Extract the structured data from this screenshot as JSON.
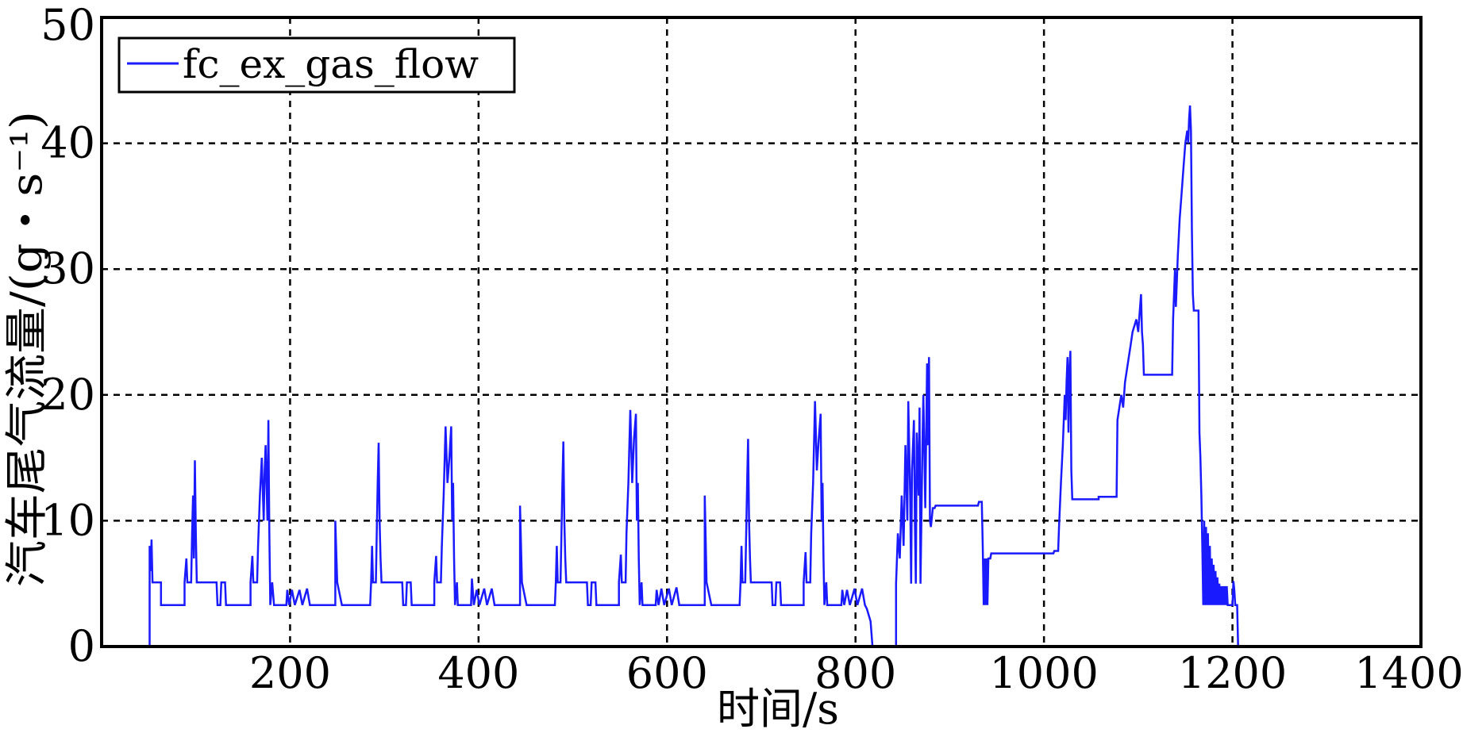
{
  "chart_data": {
    "type": "line",
    "xlabel": "时间/s",
    "ylabel": "汽车尾气流量/(g・s⁻¹)",
    "xlim": [
      0,
      1400
    ],
    "ylim": [
      0,
      50
    ],
    "xticks": [
      200,
      400,
      600,
      800,
      1000,
      1200,
      1400
    ],
    "yticks": [
      0,
      10,
      20,
      30,
      40,
      50
    ],
    "grid": true,
    "legend_position": "top-left",
    "series_color": "#1a1aff",
    "series": [
      {
        "name": "fc_ex_gas_flow",
        "points": [
          [
            51,
            0
          ],
          [
            51,
            8
          ],
          [
            52,
            6
          ],
          [
            53,
            8.5
          ],
          [
            54,
            5.1
          ],
          [
            63,
            5.1
          ],
          [
            63,
            3.3
          ],
          [
            88,
            3.3
          ],
          [
            88,
            5.1
          ],
          [
            90,
            7
          ],
          [
            91,
            5.1
          ],
          [
            95,
            5.1
          ],
          [
            96,
            9
          ],
          [
            97,
            12
          ],
          [
            98,
            7
          ],
          [
            99,
            14.8
          ],
          [
            100,
            9
          ],
          [
            101,
            5.1
          ],
          [
            122,
            5.1
          ],
          [
            123,
            3.3
          ],
          [
            126,
            3.3
          ],
          [
            127,
            5.1
          ],
          [
            131,
            5.1
          ],
          [
            132,
            3.3
          ],
          [
            158,
            3.3
          ],
          [
            158,
            5.1
          ],
          [
            160,
            7.2
          ],
          [
            161,
            5.1
          ],
          [
            165,
            5.1
          ],
          [
            166,
            8
          ],
          [
            168,
            12
          ],
          [
            170,
            15
          ],
          [
            172,
            10
          ],
          [
            173,
            14
          ],
          [
            174,
            16
          ],
          [
            176,
            10
          ],
          [
            177,
            18
          ],
          [
            178,
            9
          ],
          [
            179,
            3.3
          ],
          [
            181,
            5.1
          ],
          [
            183,
            3.3
          ],
          [
            196,
            3.3
          ],
          [
            197,
            4.5
          ],
          [
            199,
            3.3
          ],
          [
            202,
            4.5
          ],
          [
            205,
            3.3
          ],
          [
            210,
            4.5
          ],
          [
            213,
            3.3
          ],
          [
            218,
            4.6
          ],
          [
            221,
            3.3
          ],
          [
            226,
            3.3
          ],
          [
            248,
            3.3
          ],
          [
            248,
            10
          ],
          [
            250,
            5.1
          ],
          [
            255,
            3.3
          ],
          [
            285,
            3.3
          ],
          [
            286,
            5.1
          ],
          [
            287,
            8
          ],
          [
            288,
            5.1
          ],
          [
            291,
            5.1
          ],
          [
            292,
            9
          ],
          [
            293,
            13
          ],
          [
            294,
            16.2
          ],
          [
            295,
            10
          ],
          [
            296,
            7
          ],
          [
            297,
            5.1
          ],
          [
            319,
            5.1
          ],
          [
            320,
            3.3
          ],
          [
            323,
            3.3
          ],
          [
            324,
            5.1
          ],
          [
            328,
            5.1
          ],
          [
            329,
            3.3
          ],
          [
            353,
            3.3
          ],
          [
            353,
            5.1
          ],
          [
            355,
            7.2
          ],
          [
            356,
            5.1
          ],
          [
            360,
            5.1
          ],
          [
            361,
            8
          ],
          [
            363,
            12
          ],
          [
            365,
            17.5
          ],
          [
            367,
            13
          ],
          [
            369,
            15
          ],
          [
            371,
            17.5
          ],
          [
            372,
            10
          ],
          [
            373,
            13
          ],
          [
            374,
            7
          ],
          [
            375,
            3.3
          ],
          [
            377,
            5.1
          ],
          [
            378,
            3.3
          ],
          [
            392,
            3.3
          ],
          [
            393,
            5.4
          ],
          [
            395,
            3.3
          ],
          [
            398,
            4.5
          ],
          [
            401,
            3.3
          ],
          [
            406,
            4.6
          ],
          [
            409,
            3.3
          ],
          [
            414,
            4.6
          ],
          [
            417,
            3.3
          ],
          [
            423,
            3.3
          ],
          [
            444,
            3.3
          ],
          [
            444,
            11.2
          ],
          [
            446,
            5.1
          ],
          [
            451,
            3.3
          ],
          [
            481,
            3.3
          ],
          [
            482,
            5.1
          ],
          [
            483,
            8
          ],
          [
            484,
            5.1
          ],
          [
            487,
            5.1
          ],
          [
            488,
            9
          ],
          [
            489,
            13
          ],
          [
            490,
            16.3
          ],
          [
            491,
            10
          ],
          [
            492,
            7
          ],
          [
            493,
            5.1
          ],
          [
            515,
            5.1
          ],
          [
            516,
            3.3
          ],
          [
            519,
            3.3
          ],
          [
            520,
            5.1
          ],
          [
            524,
            5.1
          ],
          [
            525,
            3.3
          ],
          [
            549,
            3.3
          ],
          [
            549,
            5.1
          ],
          [
            551,
            7.3
          ],
          [
            552,
            5.1
          ],
          [
            556,
            5.1
          ],
          [
            557,
            9
          ],
          [
            559,
            13
          ],
          [
            561,
            18.8
          ],
          [
            563,
            13
          ],
          [
            565,
            16.5
          ],
          [
            567,
            18.5
          ],
          [
            568,
            10
          ],
          [
            569,
            13
          ],
          [
            570,
            7
          ],
          [
            571,
            3.3
          ],
          [
            573,
            5.1
          ],
          [
            574,
            3.3
          ],
          [
            588,
            3.3
          ],
          [
            589,
            4.5
          ],
          [
            591,
            3.3
          ],
          [
            594,
            4.6
          ],
          [
            597,
            3.3
          ],
          [
            602,
            4.6
          ],
          [
            605,
            3.3
          ],
          [
            610,
            4.7
          ],
          [
            613,
            3.3
          ],
          [
            618,
            3.3
          ],
          [
            640,
            3.3
          ],
          [
            640,
            12
          ],
          [
            642,
            5.1
          ],
          [
            647,
            3.3
          ],
          [
            677,
            3.3
          ],
          [
            678,
            5.1
          ],
          [
            679,
            8
          ],
          [
            680,
            5.1
          ],
          [
            683,
            5.1
          ],
          [
            684,
            9
          ],
          [
            685,
            13
          ],
          [
            686,
            16.5
          ],
          [
            687,
            10
          ],
          [
            688,
            7
          ],
          [
            689,
            5.1
          ],
          [
            711,
            5.1
          ],
          [
            712,
            3.3
          ],
          [
            715,
            3.3
          ],
          [
            716,
            5.1
          ],
          [
            720,
            5.1
          ],
          [
            721,
            3.3
          ],
          [
            745,
            3.3
          ],
          [
            745,
            5.1
          ],
          [
            747,
            7.5
          ],
          [
            748,
            5.1
          ],
          [
            752,
            5.1
          ],
          [
            753,
            9
          ],
          [
            755,
            13
          ],
          [
            757,
            19.5
          ],
          [
            759,
            14
          ],
          [
            761,
            16.5
          ],
          [
            763,
            18.5
          ],
          [
            764,
            10
          ],
          [
            765,
            13
          ],
          [
            766,
            7
          ],
          [
            767,
            3.3
          ],
          [
            769,
            5.1
          ],
          [
            770,
            3.3
          ],
          [
            785,
            3.3
          ],
          [
            786,
            4.5
          ],
          [
            788,
            3.3
          ],
          [
            791,
            4.5
          ],
          [
            794,
            3.3
          ],
          [
            799,
            4.6
          ],
          [
            802,
            3.3
          ],
          [
            807,
            4.6
          ],
          [
            810,
            3.3
          ],
          [
            812,
            3
          ],
          [
            816,
            2
          ],
          [
            818,
            0
          ],
          [
            843,
            0
          ],
          [
            843,
            5
          ],
          [
            845,
            9
          ],
          [
            847,
            7
          ],
          [
            849,
            12
          ],
          [
            851,
            8
          ],
          [
            853,
            16
          ],
          [
            855,
            10
          ],
          [
            856,
            19.5
          ],
          [
            858,
            12
          ],
          [
            859,
            5
          ],
          [
            860,
            14
          ],
          [
            862,
            18
          ],
          [
            863,
            10
          ],
          [
            864,
            5
          ],
          [
            865,
            17
          ],
          [
            867,
            12
          ],
          [
            868,
            19
          ],
          [
            869,
            5
          ],
          [
            871,
            16
          ],
          [
            872,
            20
          ],
          [
            874,
            11
          ],
          [
            876,
            22.5
          ],
          [
            877,
            16
          ],
          [
            878,
            23
          ],
          [
            879,
            10
          ],
          [
            880,
            9.5
          ],
          [
            882,
            11
          ],
          [
            884,
            11
          ],
          [
            885,
            11.2
          ],
          [
            930,
            11.2
          ],
          [
            931,
            11.5
          ],
          [
            934,
            11.5
          ],
          [
            935,
            8
          ],
          [
            936,
            3.3
          ],
          [
            937,
            7
          ],
          [
            938,
            3.3
          ],
          [
            939,
            7
          ],
          [
            940,
            3.3
          ],
          [
            941,
            7
          ],
          [
            943,
            7
          ],
          [
            944,
            7.4
          ],
          [
            1010,
            7.4
          ],
          [
            1011,
            7.6
          ],
          [
            1015,
            7.6
          ],
          [
            1016,
            9.5
          ],
          [
            1018,
            13
          ],
          [
            1020,
            16
          ],
          [
            1022,
            20
          ],
          [
            1023,
            18
          ],
          [
            1024,
            21
          ],
          [
            1025,
            23
          ],
          [
            1026,
            17
          ],
          [
            1027,
            22
          ],
          [
            1028,
            23.5
          ],
          [
            1029,
            14
          ],
          [
            1030,
            11.7
          ],
          [
            1058,
            11.7
          ],
          [
            1058,
            11.9
          ],
          [
            1077,
            11.9
          ],
          [
            1078,
            18
          ],
          [
            1080,
            19
          ],
          [
            1082,
            20
          ],
          [
            1084,
            19
          ],
          [
            1086,
            21
          ],
          [
            1088,
            22
          ],
          [
            1090,
            23
          ],
          [
            1092,
            24
          ],
          [
            1094,
            25
          ],
          [
            1096,
            25.5
          ],
          [
            1098,
            26
          ],
          [
            1100,
            25
          ],
          [
            1102,
            27
          ],
          [
            1103,
            28
          ],
          [
            1104,
            25
          ],
          [
            1105,
            24
          ],
          [
            1106,
            21.6
          ],
          [
            1136,
            21.6
          ],
          [
            1137,
            26
          ],
          [
            1139,
            30
          ],
          [
            1140,
            27
          ],
          [
            1142,
            31
          ],
          [
            1144,
            34
          ],
          [
            1146,
            36
          ],
          [
            1148,
            38
          ],
          [
            1150,
            40
          ],
          [
            1152,
            41
          ],
          [
            1153,
            40
          ],
          [
            1154,
            42
          ],
          [
            1155,
            43
          ],
          [
            1156,
            41
          ],
          [
            1157,
            33
          ],
          [
            1158,
            28
          ],
          [
            1159,
            26.7
          ],
          [
            1164,
            26.7
          ],
          [
            1165,
            17
          ],
          [
            1166,
            15
          ],
          [
            1167,
            12
          ],
          [
            1168,
            8
          ],
          [
            1169,
            3.3
          ],
          [
            1170,
            10
          ],
          [
            1171,
            3.3
          ],
          [
            1172,
            9.5
          ],
          [
            1173,
            3.3
          ],
          [
            1174,
            9
          ],
          [
            1175,
            3.3
          ],
          [
            1176,
            8
          ],
          [
            1177,
            3.3
          ],
          [
            1178,
            7
          ],
          [
            1179,
            3.3
          ],
          [
            1180,
            6.5
          ],
          [
            1181,
            3.3
          ],
          [
            1182,
            6
          ],
          [
            1183,
            3.3
          ],
          [
            1184,
            5.5
          ],
          [
            1185,
            3.3
          ],
          [
            1186,
            5
          ],
          [
            1187,
            3.3
          ],
          [
            1188,
            4.8
          ],
          [
            1189,
            3.3
          ],
          [
            1190,
            4.8
          ],
          [
            1191,
            3.3
          ],
          [
            1192,
            4.8
          ],
          [
            1193,
            3.3
          ],
          [
            1194,
            4.8
          ],
          [
            1195,
            3.3
          ],
          [
            1200,
            3.3
          ],
          [
            1201,
            5.2
          ],
          [
            1202,
            4.5
          ],
          [
            1203,
            3.3
          ],
          [
            1205,
            3.3
          ],
          [
            1206,
            0
          ]
        ]
      }
    ]
  }
}
